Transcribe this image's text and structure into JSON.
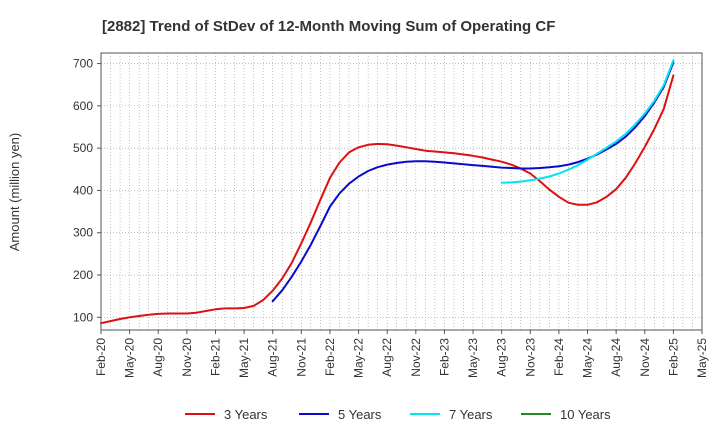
{
  "chart_data": {
    "type": "line",
    "title": "[2882]  Trend of StDev of 12-Month Moving Sum of Operating CF",
    "xlabel": "",
    "ylabel": "Amount (million yen)",
    "ylim": [
      70,
      725
    ],
    "yticks": [
      100,
      200,
      300,
      400,
      500,
      600,
      700
    ],
    "x_start": "Feb-20",
    "x_end": "May-25",
    "x_ticks": [
      "Feb-20",
      "May-20",
      "Aug-20",
      "Nov-20",
      "Feb-21",
      "May-21",
      "Aug-21",
      "Nov-21",
      "Feb-22",
      "May-22",
      "Aug-22",
      "Nov-22",
      "Feb-23",
      "May-23",
      "Aug-23",
      "Nov-23",
      "Feb-24",
      "May-24",
      "Aug-24",
      "Nov-24",
      "Feb-25",
      "May-25"
    ],
    "grid": true,
    "legend_position": "bottom",
    "series": [
      {
        "name": "3 Years",
        "color": "#dd1111",
        "points": [
          [
            "Feb-20",
            86
          ],
          [
            "Mar-20",
            91
          ],
          [
            "Apr-20",
            96
          ],
          [
            "May-20",
            100
          ],
          [
            "Jun-20",
            103
          ],
          [
            "Jul-20",
            106
          ],
          [
            "Aug-20",
            108
          ],
          [
            "Sep-20",
            109
          ],
          [
            "Oct-20",
            109
          ],
          [
            "Nov-20",
            109
          ],
          [
            "Dec-20",
            111
          ],
          [
            "Jan-21",
            115
          ],
          [
            "Feb-21",
            119
          ],
          [
            "Mar-21",
            121
          ],
          [
            "Apr-21",
            121
          ],
          [
            "May-21",
            122
          ],
          [
            "Jun-21",
            127
          ],
          [
            "Jul-21",
            141
          ],
          [
            "Aug-21",
            163
          ],
          [
            "Sep-21",
            192
          ],
          [
            "Oct-21",
            229
          ],
          [
            "Nov-21",
            275
          ],
          [
            "Dec-21",
            325
          ],
          [
            "Jan-22",
            378
          ],
          [
            "Feb-22",
            430
          ],
          [
            "Mar-22",
            466
          ],
          [
            "Apr-22",
            490
          ],
          [
            "May-22",
            502
          ],
          [
            "Jun-22",
            508
          ],
          [
            "Jul-22",
            510
          ],
          [
            "Aug-22",
            509
          ],
          [
            "Sep-22",
            506
          ],
          [
            "Oct-22",
            502
          ],
          [
            "Nov-22",
            498
          ],
          [
            "Dec-22",
            494
          ],
          [
            "Jan-23",
            492
          ],
          [
            "Feb-23",
            490
          ],
          [
            "Mar-23",
            488
          ],
          [
            "Apr-23",
            485
          ],
          [
            "May-23",
            482
          ],
          [
            "Jun-23",
            478
          ],
          [
            "Jul-23",
            473
          ],
          [
            "Aug-23",
            468
          ],
          [
            "Sep-23",
            461
          ],
          [
            "Oct-23",
            452
          ],
          [
            "Nov-23",
            440
          ],
          [
            "Dec-23",
            422
          ],
          [
            "Jan-24",
            402
          ],
          [
            "Feb-24",
            385
          ],
          [
            "Mar-24",
            371
          ],
          [
            "Apr-24",
            366
          ],
          [
            "May-24",
            366
          ],
          [
            "Jun-24",
            372
          ],
          [
            "Jul-24",
            385
          ],
          [
            "Aug-24",
            403
          ],
          [
            "Sep-24",
            430
          ],
          [
            "Oct-24",
            464
          ],
          [
            "Nov-24",
            503
          ],
          [
            "Dec-24",
            545
          ],
          [
            "Jan-25",
            593
          ],
          [
            "Feb-25",
            672
          ]
        ]
      },
      {
        "name": "5 Years",
        "color": "#0a0acc",
        "points": [
          [
            "Aug-21",
            138
          ],
          [
            "Sep-21",
            164
          ],
          [
            "Oct-21",
            196
          ],
          [
            "Nov-21",
            232
          ],
          [
            "Dec-21",
            272
          ],
          [
            "Jan-22",
            316
          ],
          [
            "Feb-22",
            362
          ],
          [
            "Mar-22",
            393
          ],
          [
            "Apr-22",
            416
          ],
          [
            "May-22",
            433
          ],
          [
            "Jun-22",
            446
          ],
          [
            "Jul-22",
            455
          ],
          [
            "Aug-22",
            461
          ],
          [
            "Sep-22",
            465
          ],
          [
            "Oct-22",
            468
          ],
          [
            "Nov-22",
            469
          ],
          [
            "Dec-22",
            469
          ],
          [
            "Jan-23",
            468
          ],
          [
            "Feb-23",
            466
          ],
          [
            "Mar-23",
            464
          ],
          [
            "Apr-23",
            462
          ],
          [
            "May-23",
            460
          ],
          [
            "Jun-23",
            458
          ],
          [
            "Jul-23",
            456
          ],
          [
            "Aug-23",
            454
          ],
          [
            "Sep-23",
            453
          ],
          [
            "Oct-23",
            452
          ],
          [
            "Nov-23",
            452
          ],
          [
            "Dec-23",
            453
          ],
          [
            "Jan-24",
            455
          ],
          [
            "Feb-24",
            457
          ],
          [
            "Mar-24",
            461
          ],
          [
            "Apr-24",
            467
          ],
          [
            "May-24",
            475
          ],
          [
            "Jun-24",
            485
          ],
          [
            "Jul-24",
            497
          ],
          [
            "Aug-24",
            510
          ],
          [
            "Sep-24",
            527
          ],
          [
            "Oct-24",
            549
          ],
          [
            "Nov-24",
            576
          ],
          [
            "Dec-24",
            608
          ],
          [
            "Jan-25",
            645
          ],
          [
            "Feb-25",
            703
          ]
        ]
      },
      {
        "name": "7 Years",
        "color": "#00e5ee",
        "points": [
          [
            "Aug-23",
            418
          ],
          [
            "Sep-23",
            419
          ],
          [
            "Oct-23",
            421
          ],
          [
            "Nov-23",
            424
          ],
          [
            "Dec-23",
            428
          ],
          [
            "Jan-24",
            433
          ],
          [
            "Feb-24",
            440
          ],
          [
            "Mar-24",
            449
          ],
          [
            "Apr-24",
            460
          ],
          [
            "May-24",
            473
          ],
          [
            "Jun-24",
            487
          ],
          [
            "Jul-24",
            501
          ],
          [
            "Aug-24",
            516
          ],
          [
            "Sep-24",
            534
          ],
          [
            "Oct-24",
            556
          ],
          [
            "Nov-24",
            582
          ],
          [
            "Dec-24",
            612
          ],
          [
            "Jan-25",
            649
          ],
          [
            "Feb-25",
            708
          ]
        ]
      },
      {
        "name": "10 Years",
        "color": "#228b22",
        "points": []
      }
    ]
  }
}
